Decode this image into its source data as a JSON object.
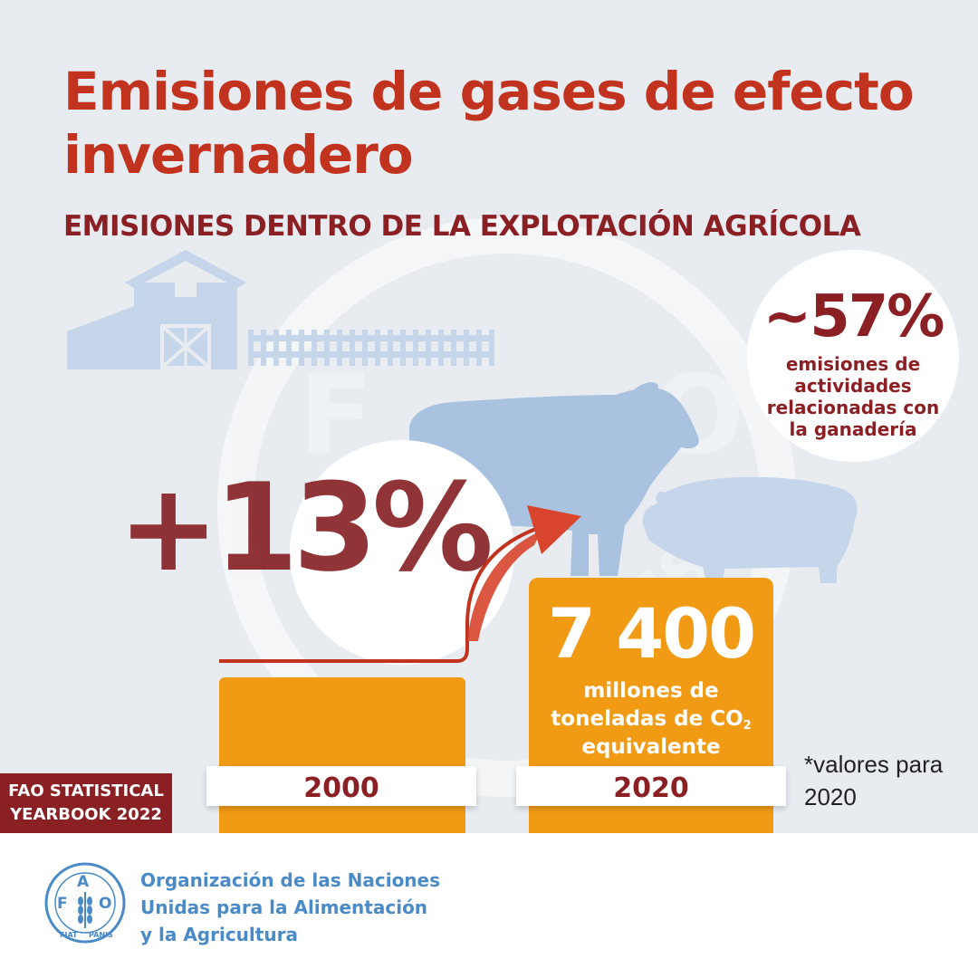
{
  "title": "Emisiones de gases de efecto invernadero",
  "subtitle": "EMISIONES DENTRO DE LA EXPLOTACIÓN AGRÍCOLA",
  "livestock_share": {
    "value": "~57%",
    "text": "emisiones de actividades relacionadas con la ganadería"
  },
  "growth": {
    "value": "+13%"
  },
  "emissions": {
    "value": "7 400",
    "line1": "millones de",
    "line2": "toneladas de CO",
    "subscript": "2",
    "line3": "equivalente"
  },
  "years": {
    "start": "2000",
    "end": "2020"
  },
  "note": "*valores para 2020",
  "publication_tag": {
    "line1": "FAO STATISTICAL",
    "line2": "YEARBOOK 2022"
  },
  "organization": {
    "line1": "Organización de las Naciones",
    "line2": "Unidas para la Alimentación",
    "line3": "y la Agricultura"
  },
  "logo": {
    "letters": [
      "F",
      "A",
      "O"
    ],
    "motto_left": "FIAT",
    "motto_right": "PANIS",
    "watermark_motto": "PANIS"
  },
  "colors": {
    "title_red": "#c2331f",
    "dark_red": "#8a1f24",
    "orange": "#f19a14",
    "background": "#e8ecf0",
    "illustration_blue": "#c5d6ea",
    "fao_blue": "#4a8ac6"
  },
  "icons": [
    "barn-icon",
    "fence-icon",
    "cow-icon",
    "pig-icon",
    "growth-arrow-icon",
    "fao-logo-icon"
  ]
}
